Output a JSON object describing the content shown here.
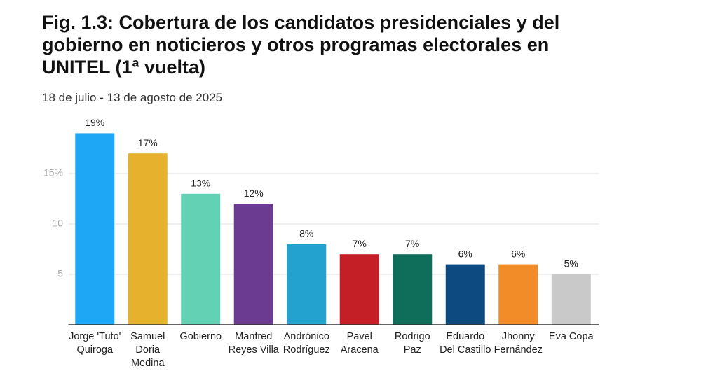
{
  "chart_data": {
    "type": "bar",
    "title": "Fig. 1.3: Cobertura de los candidatos presidenciales y del gobierno en noticieros y otros programas electorales en UNITEL (1ª vuelta)",
    "subtitle": "18 de julio - 13 de agosto de 2025",
    "categories": [
      "Jorge 'Tuto' Quiroga",
      "Samuel Doria Medina",
      "Gobierno",
      "Manfred Reyes Villa",
      "Andrónico Rodríguez",
      "Pavel Aracena",
      "Rodrigo Paz",
      "Eduardo Del Castillo",
      "Jhonny Fernández",
      "Eva Copa"
    ],
    "values": [
      19,
      17,
      13,
      12,
      8,
      7,
      7,
      6,
      6,
      5
    ],
    "value_labels": [
      "19%",
      "17%",
      "13%",
      "12%",
      "8%",
      "7%",
      "7%",
      "6%",
      "6%",
      "5%"
    ],
    "colors": [
      "#1ea7f5",
      "#e6b22e",
      "#62d1b4",
      "#6a3b91",
      "#23a2cf",
      "#c41f27",
      "#0f6e5a",
      "#0d4a80",
      "#f28c28",
      "#c9c9c9"
    ],
    "ylim": [
      0,
      20
    ],
    "yticks": [
      5,
      10,
      {
        "value": 15,
        "label": "15%"
      }
    ],
    "grid": true
  }
}
